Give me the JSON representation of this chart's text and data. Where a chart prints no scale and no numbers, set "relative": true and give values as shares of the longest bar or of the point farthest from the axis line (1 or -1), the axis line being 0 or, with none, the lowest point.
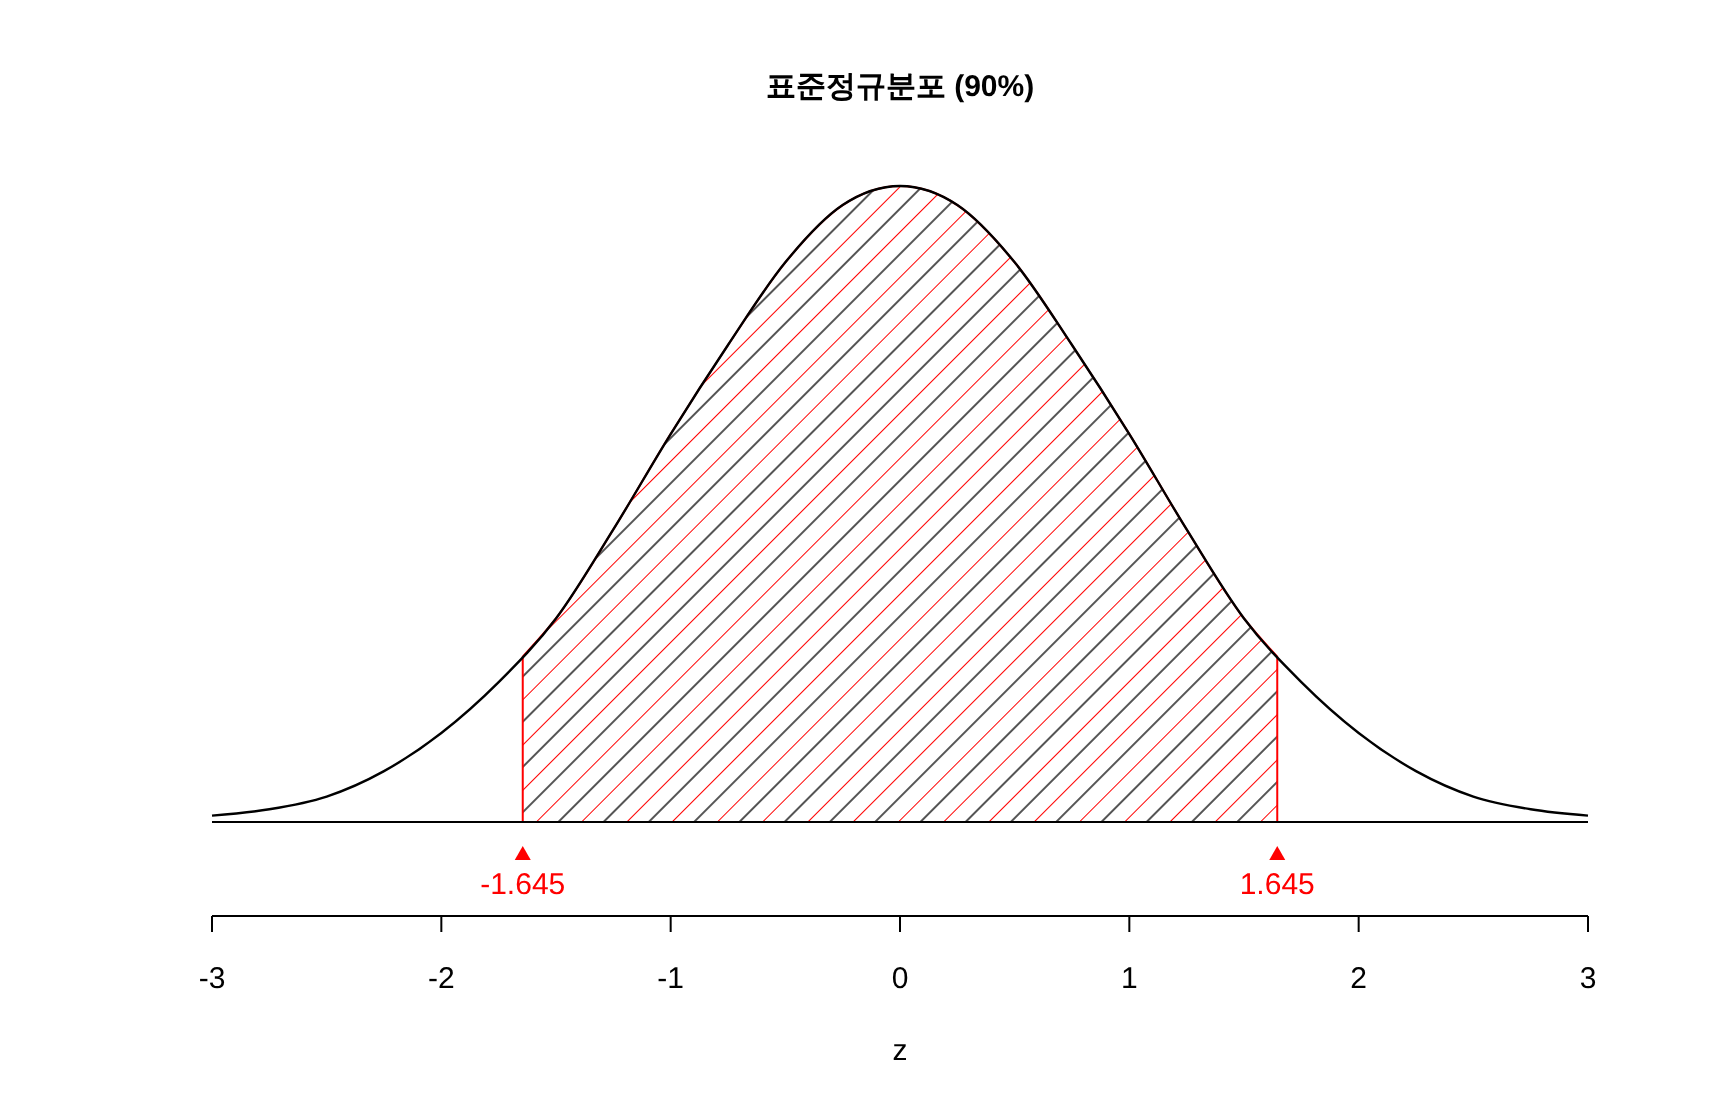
{
  "chart_data": {
    "type": "line",
    "title": "표준정규분포 (90%)",
    "xlabel": "z",
    "relative": true,
    "xlim": [
      -3,
      3
    ],
    "xticks": [
      -3,
      -2,
      -1,
      0,
      1,
      2,
      3
    ],
    "series": [
      {
        "type": "area",
        "color": "#ff0000",
        "x": [
          -1.645,
          -1.5,
          -1.25,
          -1,
          -0.75,
          -0.5,
          -0.25,
          0,
          0.25,
          0.5,
          0.75,
          1,
          1.25,
          1.5,
          1.645
        ],
        "values": [
          0.26,
          0.32,
          0.46,
          0.61,
          0.75,
          0.88,
          0.97,
          1,
          0.97,
          0.88,
          0.75,
          0.61,
          0.46,
          0.32,
          0.26
        ]
      },
      {
        "color": "#000000",
        "x": [
          -3,
          -2.75,
          -2.5,
          -2.25,
          -2,
          -1.75,
          -1.5,
          -1.25,
          -1,
          -0.75,
          -0.5,
          -0.25,
          0,
          0.25,
          0.5,
          0.75,
          1,
          1.25,
          1.5,
          1.75,
          2,
          2.25,
          2.5,
          2.75,
          3
        ],
        "values": [
          0.01,
          0.02,
          0.04,
          0.08,
          0.14,
          0.22,
          0.32,
          0.46,
          0.61,
          0.75,
          0.88,
          0.97,
          1,
          0.97,
          0.88,
          0.75,
          0.61,
          0.46,
          0.32,
          0.22,
          0.14,
          0.08,
          0.04,
          0.02,
          0.01
        ]
      }
    ],
    "annotations": [
      {
        "text": "-1.645",
        "x": -1.645,
        "y": 0
      },
      {
        "text": "1.645",
        "x": 1.645,
        "y": 0
      }
    ]
  }
}
